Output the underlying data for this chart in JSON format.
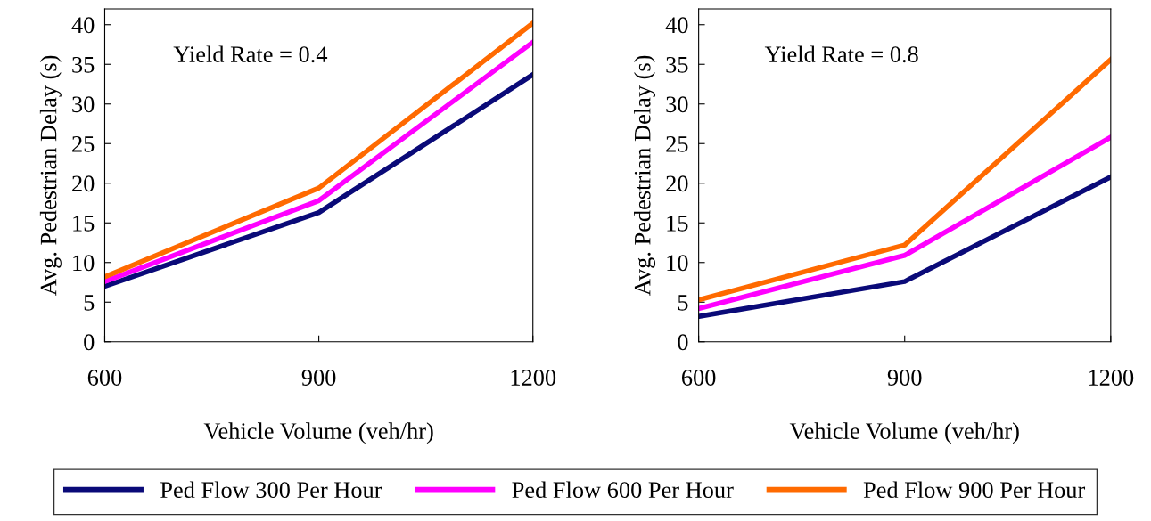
{
  "chart_data": [
    {
      "type": "line",
      "xlabel": "Vehicle Volume (veh/hr)",
      "ylabel": "Avg. Pedestrian Delay (s)",
      "annotations": [
        "Yield Rate = 0.4"
      ],
      "x": [
        600,
        900,
        1200
      ],
      "xlim": [
        600,
        1200
      ],
      "xticks": [
        600,
        900,
        1200
      ],
      "ylim": [
        0,
        42
      ],
      "yticks": [
        0,
        5,
        10,
        15,
        20,
        25,
        30,
        35,
        40
      ],
      "legend": "bottom",
      "grid": false,
      "series": [
        {
          "name": "Ped Flow 300 Per Hour",
          "color": "#0a0a78",
          "values": [
            7.0,
            16.3,
            33.7
          ]
        },
        {
          "name": "Ped Flow 600 Per Hour",
          "color": "#ff00ff",
          "values": [
            7.6,
            17.8,
            37.8
          ]
        },
        {
          "name": "Ped Flow 900 Per Hour",
          "color": "#ff6a00",
          "values": [
            8.2,
            19.4,
            40.2
          ]
        }
      ]
    },
    {
      "type": "line",
      "xlabel": "Vehicle Volume (veh/hr)",
      "ylabel": "Avg. Pedestrian Delay (s)",
      "annotations": [
        "Yield Rate = 0.8"
      ],
      "x": [
        600,
        900,
        1200
      ],
      "xlim": [
        600,
        1200
      ],
      "xticks": [
        600,
        900,
        1200
      ],
      "ylim": [
        0,
        42
      ],
      "yticks": [
        0,
        5,
        10,
        15,
        20,
        25,
        30,
        35,
        40
      ],
      "grid": false,
      "series": [
        {
          "color": "#0a0a78",
          "values": [
            3.2,
            7.6,
            20.8
          ]
        },
        {
          "color": "#ff00ff",
          "values": [
            4.2,
            10.9,
            25.8
          ]
        },
        {
          "color": "#ff6a00",
          "values": [
            5.3,
            12.2,
            35.6
          ]
        }
      ]
    }
  ]
}
